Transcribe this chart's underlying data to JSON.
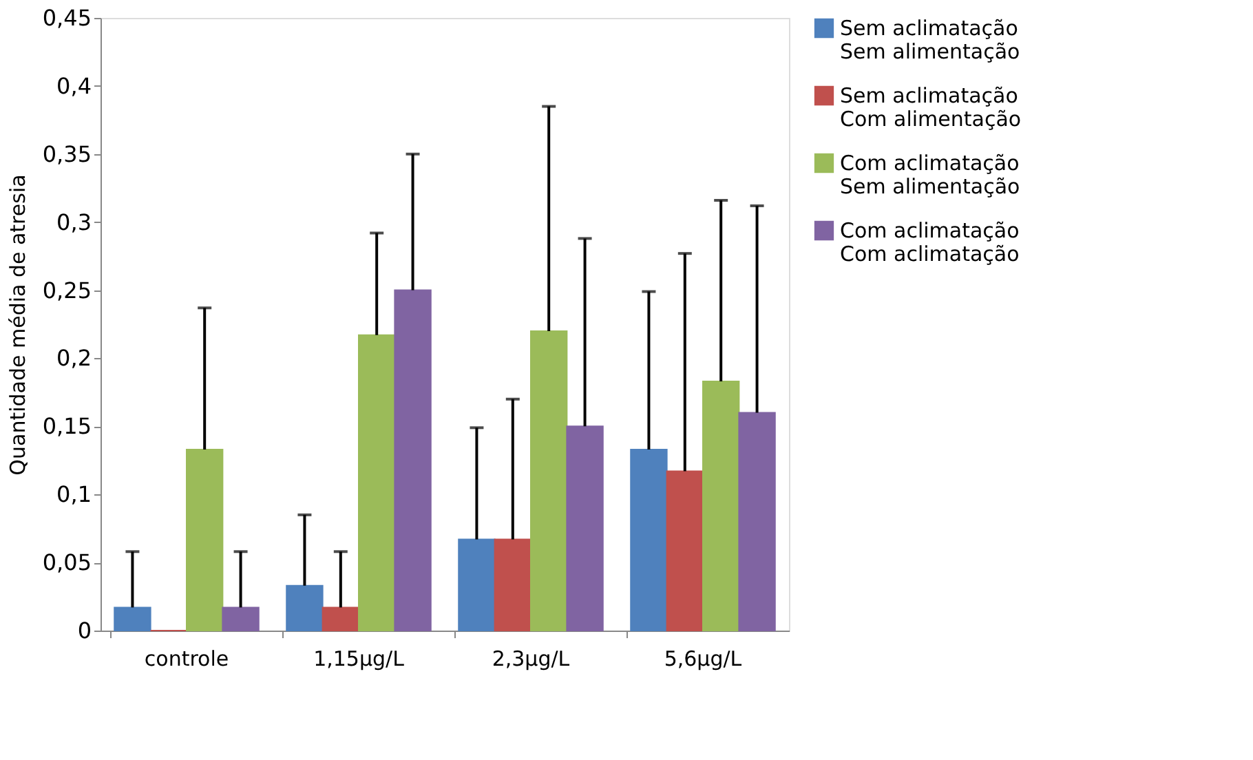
{
  "chart_data": {
    "type": "bar",
    "categories": [
      "controle",
      "1,15µg/L",
      "2,3µg/L",
      "5,6µg/L"
    ],
    "ylabel": "Quantidade média de atresia",
    "ylim": [
      0,
      0.45
    ],
    "yticks": [
      {
        "value": 0,
        "label": "0"
      },
      {
        "value": 0.05,
        "label": "0,05"
      },
      {
        "value": 0.1,
        "label": "0,1"
      },
      {
        "value": 0.15,
        "label": "0,15"
      },
      {
        "value": 0.2,
        "label": "0,2"
      },
      {
        "value": 0.25,
        "label": "0,25"
      },
      {
        "value": 0.3,
        "label": "0,3"
      },
      {
        "value": 0.35,
        "label": "0,35"
      },
      {
        "value": 0.4,
        "label": "0,4"
      },
      {
        "value": 0.45,
        "label": "0,45"
      }
    ],
    "legend": "right",
    "grid": false,
    "series": [
      {
        "name": "Sem aclimatação\nSem alimentação",
        "color": "#4f81bd",
        "values": [
          0.017,
          0.033,
          0.067,
          0.133
        ],
        "errors": [
          [
            0.017,
            0.058
          ],
          [
            0.033,
            0.085
          ],
          [
            0.067,
            0.149
          ],
          [
            0.133,
            0.249
          ]
        ]
      },
      {
        "name": "Sem aclimatação\nCom alimentação",
        "color": "#c0504d",
        "values": [
          0,
          0.017,
          0.067,
          0.117
        ],
        "errors": [
          null,
          [
            0.017,
            0.058
          ],
          [
            0.067,
            0.17
          ],
          [
            0.117,
            0.277
          ]
        ]
      },
      {
        "name": "Com aclimatação\nSem alimentação",
        "color": "#9bbb59",
        "values": [
          0.133,
          0.217,
          0.22,
          0.183
        ],
        "errors": [
          [
            0.133,
            0.237
          ],
          [
            0.217,
            0.292
          ],
          [
            0.22,
            0.385
          ],
          [
            0.183,
            0.316
          ]
        ]
      },
      {
        "name": "Com aclimatação\nCom aclimatação",
        "color": "#8064a2",
        "values": [
          0.017,
          0.25,
          0.15,
          0.16
        ],
        "errors": [
          [
            0.017,
            0.058
          ],
          [
            0.25,
            0.35
          ],
          [
            0.15,
            0.288
          ],
          [
            0.16,
            0.312
          ]
        ]
      }
    ]
  }
}
